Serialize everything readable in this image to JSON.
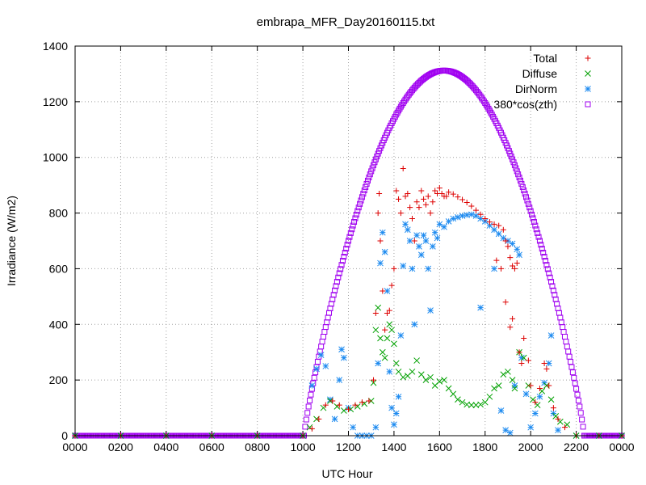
{
  "chart_data": {
    "type": "scatter",
    "title": "embrapa_MFR_Day20160115.txt",
    "xlabel": "UTC Hour",
    "ylabel": "Irradiance (W/m2)",
    "xlim": [
      0,
      2400
    ],
    "ylim": [
      0,
      1400
    ],
    "x_ticks": [
      "0000",
      "0200",
      "0400",
      "0600",
      "0800",
      "1000",
      "1200",
      "1400",
      "1600",
      "1800",
      "2000",
      "2200",
      "0000"
    ],
    "y_ticks": [
      "0",
      "200",
      "400",
      "600",
      "800",
      "1000",
      "1200",
      "1400"
    ],
    "grid": true,
    "legend_position": "top-right",
    "series": [
      {
        "name": "Total",
        "color": "#dd0000",
        "marker": "plus",
        "points": [
          [
            1000,
            0
          ],
          [
            1040,
            25
          ],
          [
            1070,
            60
          ],
          [
            1100,
            110
          ],
          [
            1130,
            125
          ],
          [
            1160,
            110
          ],
          [
            1200,
            95
          ],
          [
            1230,
            110
          ],
          [
            1260,
            120
          ],
          [
            1290,
            125
          ],
          [
            1310,
            200
          ],
          [
            1320,
            440
          ],
          [
            1330,
            800
          ],
          [
            1335,
            870
          ],
          [
            1340,
            700
          ],
          [
            1350,
            520
          ],
          [
            1360,
            380
          ],
          [
            1370,
            440
          ],
          [
            1380,
            450
          ],
          [
            1390,
            540
          ],
          [
            1400,
            600
          ],
          [
            1410,
            880
          ],
          [
            1420,
            850
          ],
          [
            1430,
            800
          ],
          [
            1440,
            960
          ],
          [
            1450,
            860
          ],
          [
            1460,
            870
          ],
          [
            1470,
            820
          ],
          [
            1480,
            780
          ],
          [
            1490,
            700
          ],
          [
            1500,
            840
          ],
          [
            1510,
            820
          ],
          [
            1520,
            880
          ],
          [
            1530,
            850
          ],
          [
            1540,
            830
          ],
          [
            1550,
            860
          ],
          [
            1560,
            800
          ],
          [
            1570,
            840
          ],
          [
            1580,
            880
          ],
          [
            1590,
            870
          ],
          [
            1600,
            890
          ],
          [
            1610,
            870
          ],
          [
            1620,
            860
          ],
          [
            1630,
            860
          ],
          [
            1640,
            875
          ],
          [
            1660,
            868
          ],
          [
            1680,
            858
          ],
          [
            1700,
            848
          ],
          [
            1720,
            838
          ],
          [
            1740,
            825
          ],
          [
            1760,
            810
          ],
          [
            1780,
            795
          ],
          [
            1800,
            780
          ],
          [
            1820,
            768
          ],
          [
            1840,
            760
          ],
          [
            1860,
            755
          ],
          [
            1880,
            740
          ],
          [
            1890,
            700
          ],
          [
            1900,
            680
          ],
          [
            1910,
            640
          ],
          [
            1920,
            610
          ],
          [
            1930,
            600
          ],
          [
            1940,
            620
          ],
          [
            1850,
            630
          ],
          [
            1870,
            600
          ],
          [
            1890,
            480
          ],
          [
            1910,
            390
          ],
          [
            1920,
            420
          ],
          [
            1950,
            300
          ],
          [
            1960,
            260
          ],
          [
            1970,
            350
          ],
          [
            1990,
            270
          ],
          [
            2000,
            180
          ],
          [
            2020,
            120
          ],
          [
            2040,
            170
          ],
          [
            2060,
            260
          ],
          [
            2070,
            240
          ],
          [
            2080,
            180
          ],
          [
            2100,
            100
          ],
          [
            2120,
            60
          ],
          [
            2150,
            30
          ],
          [
            2200,
            0
          ],
          [
            2300,
            0
          ],
          [
            2400,
            0
          ],
          [
            0,
            0
          ],
          [
            200,
            0
          ],
          [
            400,
            0
          ],
          [
            600,
            0
          ],
          [
            800,
            0
          ]
        ]
      },
      {
        "name": "Diffuse",
        "color": "#00a000",
        "marker": "cross",
        "points": [
          [
            1000,
            0
          ],
          [
            1030,
            30
          ],
          [
            1060,
            60
          ],
          [
            1090,
            100
          ],
          [
            1120,
            125
          ],
          [
            1150,
            105
          ],
          [
            1180,
            90
          ],
          [
            1210,
            95
          ],
          [
            1240,
            105
          ],
          [
            1270,
            115
          ],
          [
            1300,
            125
          ],
          [
            1310,
            190
          ],
          [
            1320,
            380
          ],
          [
            1330,
            460
          ],
          [
            1340,
            350
          ],
          [
            1350,
            300
          ],
          [
            1360,
            280
          ],
          [
            1370,
            350
          ],
          [
            1380,
            400
          ],
          [
            1390,
            380
          ],
          [
            1400,
            330
          ],
          [
            1410,
            260
          ],
          [
            1420,
            230
          ],
          [
            1440,
            210
          ],
          [
            1460,
            215
          ],
          [
            1480,
            230
          ],
          [
            1500,
            270
          ],
          [
            1520,
            220
          ],
          [
            1540,
            200
          ],
          [
            1560,
            210
          ],
          [
            1580,
            180
          ],
          [
            1600,
            195
          ],
          [
            1620,
            200
          ],
          [
            1640,
            170
          ],
          [
            1660,
            150
          ],
          [
            1680,
            130
          ],
          [
            1700,
            120
          ],
          [
            1720,
            112
          ],
          [
            1740,
            110
          ],
          [
            1760,
            110
          ],
          [
            1780,
            112
          ],
          [
            1800,
            120
          ],
          [
            1820,
            140
          ],
          [
            1840,
            170
          ],
          [
            1860,
            180
          ],
          [
            1880,
            220
          ],
          [
            1900,
            230
          ],
          [
            1920,
            200
          ],
          [
            1930,
            170
          ],
          [
            1950,
            300
          ],
          [
            1970,
            280
          ],
          [
            1990,
            180
          ],
          [
            2010,
            130
          ],
          [
            2030,
            110
          ],
          [
            2050,
            160
          ],
          [
            2070,
            180
          ],
          [
            2090,
            130
          ],
          [
            2110,
            70
          ],
          [
            2130,
            50
          ],
          [
            2160,
            40
          ],
          [
            2200,
            0
          ],
          [
            2300,
            0
          ],
          [
            2400,
            0
          ],
          [
            0,
            0
          ],
          [
            200,
            0
          ],
          [
            400,
            0
          ],
          [
            600,
            0
          ],
          [
            800,
            0
          ]
        ]
      },
      {
        "name": "DirNorm",
        "color": "#1e8bf0",
        "marker": "star",
        "points": [
          [
            1000,
            0
          ],
          [
            1040,
            180
          ],
          [
            1060,
            240
          ],
          [
            1080,
            290
          ],
          [
            1100,
            250
          ],
          [
            1120,
            130
          ],
          [
            1140,
            60
          ],
          [
            1160,
            200
          ],
          [
            1170,
            310
          ],
          [
            1180,
            280
          ],
          [
            1200,
            100
          ],
          [
            1220,
            30
          ],
          [
            1240,
            0
          ],
          [
            1260,
            0
          ],
          [
            1280,
            0
          ],
          [
            1300,
            0
          ],
          [
            1320,
            30
          ],
          [
            1330,
            260
          ],
          [
            1340,
            620
          ],
          [
            1350,
            730
          ],
          [
            1360,
            660
          ],
          [
            1370,
            520
          ],
          [
            1380,
            230
          ],
          [
            1390,
            100
          ],
          [
            1400,
            40
          ],
          [
            1410,
            80
          ],
          [
            1420,
            140
          ],
          [
            1430,
            360
          ],
          [
            1440,
            610
          ],
          [
            1450,
            760
          ],
          [
            1460,
            740
          ],
          [
            1470,
            700
          ],
          [
            1480,
            600
          ],
          [
            1490,
            400
          ],
          [
            1500,
            720
          ],
          [
            1510,
            680
          ],
          [
            1520,
            650
          ],
          [
            1530,
            720
          ],
          [
            1540,
            700
          ],
          [
            1550,
            600
          ],
          [
            1560,
            450
          ],
          [
            1570,
            680
          ],
          [
            1580,
            730
          ],
          [
            1590,
            710
          ],
          [
            1600,
            760
          ],
          [
            1620,
            750
          ],
          [
            1640,
            770
          ],
          [
            1660,
            780
          ],
          [
            1680,
            785
          ],
          [
            1700,
            790
          ],
          [
            1720,
            793
          ],
          [
            1740,
            795
          ],
          [
            1760,
            790
          ],
          [
            1780,
            780
          ],
          [
            1800,
            770
          ],
          [
            1820,
            755
          ],
          [
            1840,
            740
          ],
          [
            1860,
            725
          ],
          [
            1880,
            710
          ],
          [
            1900,
            700
          ],
          [
            1920,
            690
          ],
          [
            1940,
            670
          ],
          [
            1950,
            650
          ],
          [
            1780,
            460
          ],
          [
            1840,
            600
          ],
          [
            1870,
            90
          ],
          [
            1890,
            20
          ],
          [
            1910,
            10
          ],
          [
            1930,
            180
          ],
          [
            1960,
            280
          ],
          [
            1980,
            150
          ],
          [
            2000,
            30
          ],
          [
            2020,
            80
          ],
          [
            2040,
            140
          ],
          [
            2060,
            190
          ],
          [
            2080,
            260
          ],
          [
            2090,
            360
          ],
          [
            2100,
            80
          ],
          [
            2120,
            20
          ],
          [
            2200,
            0
          ],
          [
            2300,
            0
          ],
          [
            2400,
            0
          ],
          [
            0,
            0
          ],
          [
            200,
            0
          ],
          [
            400,
            0
          ],
          [
            600,
            0
          ],
          [
            800,
            0
          ]
        ]
      },
      {
        "name": "380*cos(zth)",
        "color": "#a000f0",
        "marker": "square",
        "formula": "cos(zth) curve peaking ~1312 at 1620 UTC, zero before ~1005 and after ~2235",
        "peak": 1312,
        "peak_x": 1620,
        "start_x": 1005,
        "end_x": 2235
      }
    ]
  }
}
